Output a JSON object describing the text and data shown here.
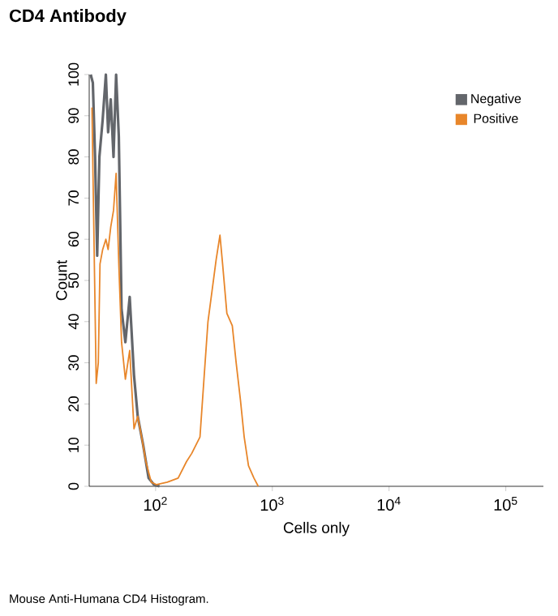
{
  "chart_data": {
    "type": "line",
    "title": "CD4 Antibody",
    "xlabel": "Cells only",
    "ylabel": "Count",
    "log": "x",
    "legend": "top right",
    "grid": false,
    "xlim": [
      27,
      210000
    ],
    "xticks": [
      {
        "value": 100,
        "label": "10$^{2}$"
      },
      {
        "value": 1000,
        "label": "10$^{3}$"
      },
      {
        "value": 10000,
        "label": "10$^{4}$"
      },
      {
        "value": 100000,
        "label": "10$^{5}$"
      }
    ],
    "ylim": [
      0,
      100
    ],
    "yticks": [
      0,
      10,
      20,
      30,
      40,
      50,
      60,
      70,
      80,
      90,
      100
    ],
    "annotations": [
      "Mouse Anti-Humana CD4 Histogram."
    ],
    "series": [
      {
        "name": "Negative",
        "color": "#63666b",
        "x": [
          27.8,
          29.0,
          30.3,
          31.6,
          33.0,
          35.2,
          37.5,
          39.2,
          41.3,
          43.6,
          45.9,
          48.4,
          51.1,
          55.1,
          60.0,
          65.3,
          70.3,
          78.3,
          87.1,
          96.9,
          108
        ],
        "values": [
          100,
          98,
          80,
          56,
          80,
          89,
          100,
          86,
          94,
          80,
          100,
          85,
          43,
          35,
          46,
          27,
          17,
          10,
          2,
          0.4,
          0
        ]
      },
      {
        "name": "Positive",
        "color": "#e8862a",
        "x": [
          28.5,
          30.0,
          31.0,
          32.3,
          33.4,
          35.2,
          37.5,
          39.2,
          41.3,
          43.6,
          45.9,
          48.4,
          51.1,
          55.1,
          60.0,
          65.3,
          70.3,
          75.9,
          82.6,
          91.8,
          102,
          126,
          156,
          184,
          204,
          240,
          261,
          281,
          303,
          330,
          356,
          375,
          408,
          454,
          490,
          533,
          574,
          625,
          696,
          758
        ],
        "values": [
          92,
          51,
          25,
          30,
          54,
          57.5,
          60,
          57.5,
          63,
          67,
          76,
          54,
          35,
          26,
          33,
          14,
          17,
          12,
          6,
          1,
          0.4,
          1,
          2,
          6,
          8,
          12,
          27,
          40,
          47,
          55,
          61,
          54,
          42,
          39,
          30,
          21,
          12,
          5,
          2,
          0
        ]
      }
    ]
  }
}
